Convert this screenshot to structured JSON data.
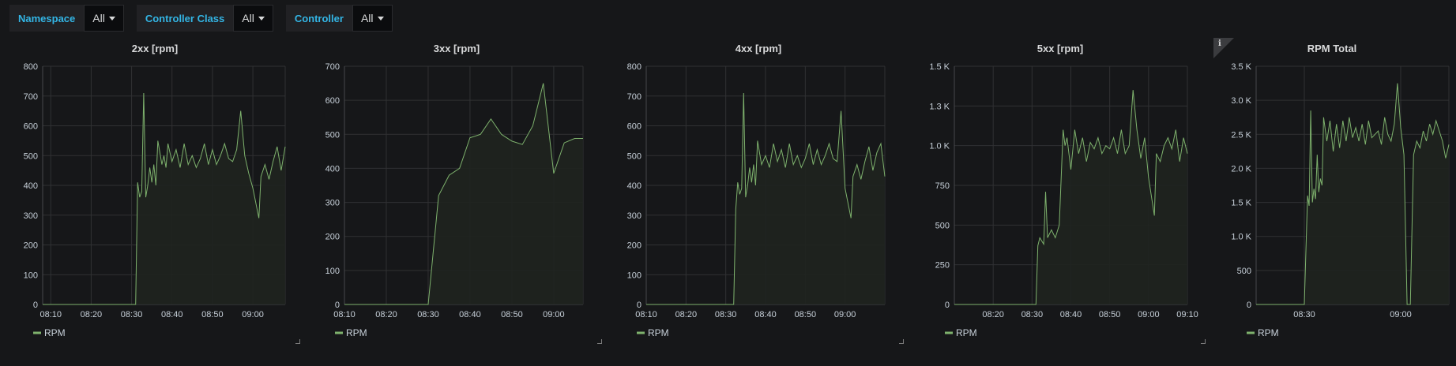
{
  "variables": [
    {
      "label": "Namespace",
      "value": "All"
    },
    {
      "label": "Controller Class",
      "value": "All"
    },
    {
      "label": "Controller",
      "value": "All"
    }
  ],
  "colors": {
    "series": "#7eb26d",
    "fill": "#1f241f",
    "grid": "#303133",
    "background": "#161719"
  },
  "chart_data": [
    {
      "type": "area",
      "title": "2xx [rpm]",
      "x_ticks": [
        "08:10",
        "08:20",
        "08:30",
        "08:40",
        "08:50",
        "09:00"
      ],
      "x_range": [
        "08:08",
        "09:08"
      ],
      "y_ticks": [
        "0",
        "100",
        "200",
        "300",
        "400",
        "500",
        "600",
        "700",
        "800"
      ],
      "ylim": [
        0,
        800
      ],
      "grid": true,
      "legend": "bottom-left",
      "series": [
        {
          "name": "RPM",
          "x": [
            "08:08",
            "08:31",
            "08:31.5",
            "08:32",
            "08:32.5",
            "08:33",
            "08:33.5",
            "08:34",
            "08:34.5",
            "08:35",
            "08:35.5",
            "08:36",
            "08:36.5",
            "08:37",
            "08:37.5",
            "08:38",
            "08:38.5",
            "08:39",
            "08:40",
            "08:41",
            "08:42",
            "08:43",
            "08:44",
            "08:45",
            "08:46",
            "08:47",
            "08:48",
            "08:49",
            "08:50",
            "08:51",
            "08:52",
            "08:53",
            "08:54",
            "08:55",
            "08:56",
            "08:57",
            "08:58",
            "08:59",
            "09:00",
            "09:01.5",
            "09:02",
            "09:03",
            "09:04",
            "09:05",
            "09:06",
            "09:07",
            "09:08"
          ],
          "values": [
            0,
            0,
            410,
            360,
            380,
            710,
            360,
            400,
            460,
            410,
            470,
            400,
            550,
            510,
            470,
            500,
            460,
            540,
            480,
            520,
            460,
            540,
            470,
            500,
            460,
            490,
            540,
            470,
            520,
            470,
            500,
            540,
            490,
            480,
            520,
            650,
            500,
            440,
            390,
            290,
            430,
            470,
            420,
            480,
            530,
            450,
            530
          ],
          "gaps": [
            [
              2,
              3
            ]
          ]
        }
      ]
    },
    {
      "type": "area",
      "title": "3xx [rpm]",
      "x_ticks": [
        "08:10",
        "08:20",
        "08:30",
        "08:40",
        "08:50",
        "09:00"
      ],
      "x_range": [
        "08:10",
        "09:07"
      ],
      "y_ticks": [
        "0",
        "100",
        "200",
        "300",
        "400",
        "500",
        "600",
        "700"
      ],
      "ylim": [
        0,
        700
      ],
      "grid": true,
      "legend": "bottom-left",
      "series": [
        {
          "name": "RPM",
          "x": [
            "08:10",
            "08:30",
            "08:32.5",
            "08:35",
            "08:37.5",
            "08:40",
            "08:42.5",
            "08:45",
            "08:47.5",
            "08:50",
            "08:52.5",
            "08:55",
            "08:57.5",
            "09:00",
            "09:02.5",
            "09:05",
            "09:07"
          ],
          "values": [
            0,
            0,
            320,
            380,
            400,
            490,
            500,
            545,
            500,
            480,
            470,
            525,
            650,
            385,
            475,
            488,
            488
          ]
        }
      ]
    },
    {
      "type": "area",
      "title": "4xx [rpm]",
      "x_ticks": [
        "08:10",
        "08:20",
        "08:30",
        "08:40",
        "08:50",
        "09:00"
      ],
      "x_range": [
        "08:10",
        "09:10"
      ],
      "y_ticks": [
        "0",
        "100",
        "200",
        "300",
        "400",
        "500",
        "600",
        "700",
        "800"
      ],
      "ylim": [
        0,
        800
      ],
      "grid": true,
      "legend": "bottom-left",
      "series": [
        {
          "name": "RPM",
          "x": [
            "08:10",
            "08:32",
            "08:32.5",
            "08:33",
            "08:33.5",
            "08:34",
            "08:34.5",
            "08:35",
            "08:35.5",
            "08:36",
            "08:36.5",
            "08:37",
            "08:37.5",
            "08:38",
            "08:38.5",
            "08:39",
            "08:40",
            "08:41",
            "08:42",
            "08:43",
            "08:44",
            "08:45",
            "08:46",
            "08:47",
            "08:48",
            "08:49",
            "08:50",
            "08:51",
            "08:52",
            "08:53",
            "08:54",
            "08:55",
            "08:56",
            "08:57",
            "08:58",
            "08:59",
            "09:00",
            "09:01.5",
            "09:02",
            "09:03",
            "09:04",
            "09:05",
            "09:06",
            "09:07",
            "09:08",
            "09:09",
            "09:10"
          ],
          "values": [
            0,
            0,
            320,
            410,
            370,
            390,
            710,
            360,
            400,
            460,
            410,
            470,
            400,
            550,
            510,
            470,
            500,
            460,
            540,
            480,
            520,
            460,
            540,
            470,
            500,
            460,
            490,
            540,
            470,
            520,
            470,
            500,
            540,
            490,
            480,
            650,
            390,
            290,
            430,
            470,
            420,
            480,
            530,
            450,
            510,
            540,
            430
          ]
        }
      ]
    },
    {
      "type": "area",
      "title": "5xx [rpm]",
      "x_ticks": [
        "08:20",
        "08:30",
        "08:40",
        "08:50",
        "09:00",
        "09:10"
      ],
      "x_range": [
        "08:10",
        "09:10"
      ],
      "y_ticks": [
        "0",
        "250",
        "500",
        "750",
        "1.0 K",
        "1.3 K",
        "1.5 K"
      ],
      "ylim": [
        0,
        1500
      ],
      "grid": true,
      "legend": "bottom-left",
      "series": [
        {
          "name": "RPM",
          "x": [
            "08:10",
            "08:31",
            "08:31.5",
            "08:32",
            "08:33",
            "08:33.5",
            "08:34",
            "08:35",
            "08:36",
            "08:37",
            "08:38",
            "08:38.5",
            "08:39",
            "08:40",
            "08:41",
            "08:42",
            "08:43",
            "08:44",
            "08:45",
            "08:46",
            "08:47",
            "08:48",
            "08:49",
            "08:50",
            "08:51",
            "08:52",
            "08:53",
            "08:54",
            "08:55",
            "08:56",
            "08:57",
            "08:58",
            "08:59",
            "09:00",
            "09:01.5",
            "09:02",
            "09:03",
            "09:04",
            "09:05",
            "09:06",
            "09:07",
            "09:08",
            "09:09",
            "09:10"
          ],
          "values": [
            0,
            0,
            370,
            420,
            380,
            710,
            420,
            470,
            420,
            500,
            1100,
            1000,
            1050,
            850,
            1100,
            950,
            1050,
            900,
            1020,
            980,
            1050,
            950,
            1000,
            980,
            1050,
            950,
            1100,
            950,
            1000,
            1350,
            1100,
            920,
            1050,
            800,
            560,
            950,
            900,
            1000,
            1050,
            980,
            1100,
            900,
            1050,
            950
          ]
        }
      ]
    },
    {
      "type": "area",
      "title": "RPM Total",
      "x_ticks": [
        "08:30",
        "09:00"
      ],
      "x_range": [
        "08:15",
        "09:15"
      ],
      "y_ticks": [
        "0",
        "500",
        "1.0 K",
        "1.5 K",
        "2.0 K",
        "2.5 K",
        "3.0 K",
        "3.5 K"
      ],
      "ylim": [
        0,
        3500
      ],
      "grid": true,
      "legend": "bottom-left",
      "series": [
        {
          "name": "RPM",
          "x": [
            "08:15",
            "08:30",
            "08:31",
            "08:31.5",
            "08:32",
            "08:32.5",
            "08:33",
            "08:33.5",
            "08:34",
            "08:34.5",
            "08:35",
            "08:35.5",
            "08:36",
            "08:37",
            "08:38",
            "08:39",
            "08:40",
            "08:41",
            "08:42",
            "08:43",
            "08:44",
            "08:45",
            "08:46",
            "08:47",
            "08:48",
            "08:49",
            "08:50",
            "08:51",
            "08:52",
            "08:53",
            "08:54",
            "08:55",
            "08:56",
            "08:57",
            "08:58",
            "08:59",
            "09:00",
            "09:01",
            "09:02",
            "09:03",
            "09:04",
            "09:05",
            "09:06",
            "09:07",
            "09:08",
            "09:09",
            "09:10",
            "09:11",
            "09:12",
            "09:13",
            "09:14",
            "09:15"
          ],
          "values": [
            0,
            0,
            1600,
            1450,
            2850,
            1500,
            1700,
            1550,
            2200,
            1650,
            1850,
            1750,
            2750,
            2400,
            2700,
            2250,
            2650,
            2300,
            2700,
            2400,
            2750,
            2450,
            2600,
            2400,
            2650,
            2350,
            2700,
            2450,
            2500,
            2550,
            2350,
            2750,
            2500,
            2400,
            2650,
            3250,
            2600,
            2200,
            0,
            0,
            2200,
            2400,
            2300,
            2550,
            2400,
            2650,
            2500,
            2700,
            2550,
            2400,
            2150,
            2350
          ]
        }
      ]
    }
  ]
}
